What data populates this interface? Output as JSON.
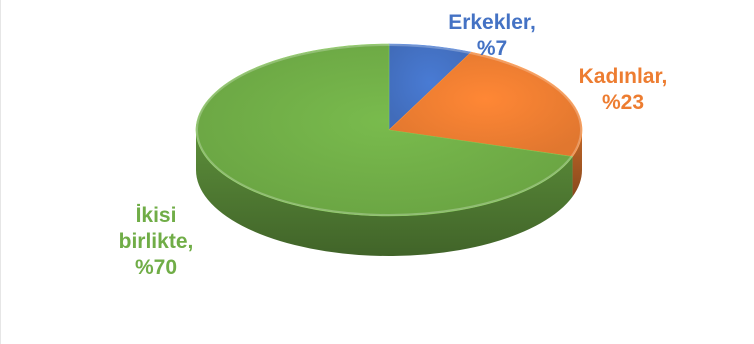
{
  "chart_data": {
    "type": "pie",
    "style": "3d",
    "title": "",
    "slices": [
      {
        "label": "Erkekler",
        "value": 7,
        "value_text": "%7",
        "color": "#4472C4"
      },
      {
        "label": "Kadınlar",
        "value": 23,
        "value_text": "%23",
        "color": "#ED7D31"
      },
      {
        "label": "İkisi birlikte",
        "label_line1": "İkisi",
        "label_line2": "birlikte,",
        "value": 70,
        "value_text": "%70",
        "color": "#70AD47"
      }
    ],
    "legend": "none",
    "data_labels": "outside"
  }
}
